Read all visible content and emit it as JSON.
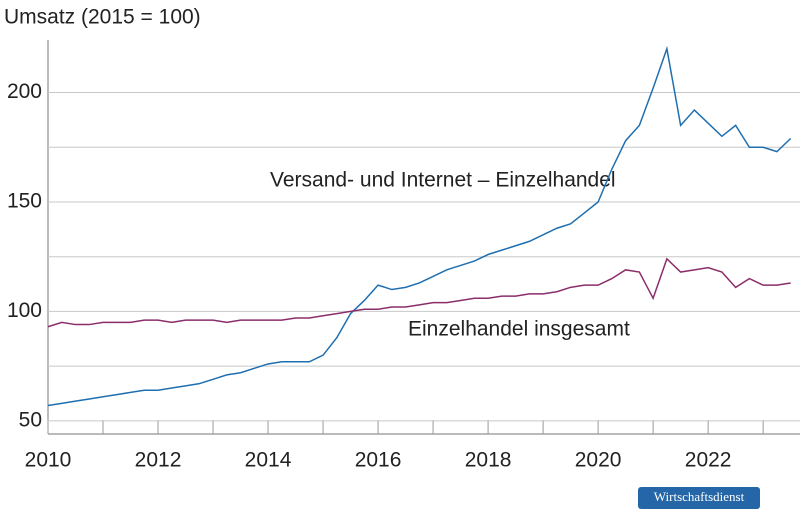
{
  "chart_data": {
    "type": "line",
    "title": "Umsatz (2015 = 100)",
    "x": [
      2010,
      2010.25,
      2010.5,
      2010.75,
      2011,
      2011.25,
      2011.5,
      2011.75,
      2012,
      2012.25,
      2012.5,
      2012.75,
      2013,
      2013.25,
      2013.5,
      2013.75,
      2014,
      2014.25,
      2014.5,
      2014.75,
      2015,
      2015.25,
      2015.5,
      2015.75,
      2016,
      2016.25,
      2016.5,
      2016.75,
      2017,
      2017.25,
      2017.5,
      2017.75,
      2018,
      2018.25,
      2018.5,
      2018.75,
      2019,
      2019.25,
      2019.5,
      2019.75,
      2020,
      2020.25,
      2020.5,
      2020.75,
      2021,
      2021.25,
      2021.5,
      2021.75,
      2022,
      2022.25,
      2022.5,
      2022.75,
      2023,
      2023.25,
      2023.5
    ],
    "series": [
      {
        "name": "Versand- und Internet – Einzelhandel",
        "color": "#1f6fb0",
        "values": [
          57,
          58,
          59,
          60,
          61,
          62,
          63,
          64,
          64,
          65,
          66,
          67,
          69,
          71,
          72,
          74,
          76,
          77,
          77,
          77,
          80,
          88,
          99,
          105,
          112,
          110,
          111,
          113,
          116,
          119,
          121,
          123,
          126,
          128,
          130,
          132,
          135,
          138,
          140,
          145,
          150,
          165,
          178,
          185,
          202,
          220,
          185,
          192,
          186,
          180,
          185,
          175,
          175,
          173,
          179
        ]
      },
      {
        "name": "Einzelhandel insgesamt",
        "color": "#8b2d6b",
        "values": [
          93,
          95,
          94,
          94,
          95,
          95,
          95,
          96,
          96,
          95,
          96,
          96,
          96,
          95,
          96,
          96,
          96,
          96,
          97,
          97,
          98,
          99,
          100,
          101,
          101,
          102,
          102,
          103,
          104,
          104,
          105,
          106,
          106,
          107,
          107,
          108,
          108,
          109,
          111,
          112,
          112,
          115,
          119,
          118,
          106,
          124,
          118,
          119,
          120,
          118,
          111,
          115,
          112,
          112,
          113
        ]
      }
    ],
    "xlim": [
      2010,
      2023.67
    ],
    "xticks": [
      2010,
      2012,
      2014,
      2016,
      2018,
      2020,
      2022
    ],
    "minor_xticks": [
      2011,
      2013,
      2015,
      2017,
      2019,
      2021,
      2023
    ],
    "ylim": [
      44,
      224
    ],
    "yticks": [
      50,
      100,
      150,
      200
    ],
    "minor_yticks": [
      75,
      125,
      175
    ],
    "grid": true,
    "source": "Wirtschaftsdienst"
  }
}
